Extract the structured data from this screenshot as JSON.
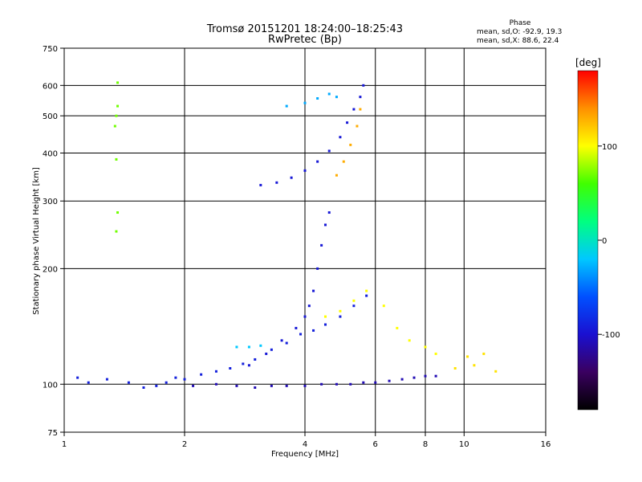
{
  "chart_data": {
    "type": "scatter",
    "title": "Tromsø 20151201 18:24:00–18:25:43",
    "subtitle": "RwPretec (Bp)",
    "xlabel": "Frequency [MHz]",
    "ylabel": "Stationary phase Virtual Height [km]",
    "x_scale": "log",
    "y_scale": "log",
    "xlim": [
      1,
      16
    ],
    "ylim": [
      75,
      750
    ],
    "x_ticks": [
      1,
      2,
      4,
      6,
      8,
      10,
      16
    ],
    "y_ticks": [
      75,
      100,
      200,
      300,
      400,
      500,
      600,
      750
    ],
    "grid": true,
    "phase_box": {
      "title": "Phase",
      "line_o": "mean, sd,O: -92.9, 19.3",
      "line_x": "mean, sd,X: 88.6, 22.4"
    },
    "colorbar": {
      "label": "[deg]",
      "range": [
        -180,
        180
      ],
      "ticks": [
        -100,
        0,
        100
      ],
      "colors": [
        "#000000",
        "#3a0060",
        "#1a10d0",
        "#0050ff",
        "#00c8ff",
        "#00ff80",
        "#40ff00",
        "#ffff00",
        "#ff9000",
        "#ff0000"
      ]
    },
    "series": [
      {
        "values": [
          [
            1.08,
            104
          ],
          [
            1.15,
            101
          ],
          [
            1.28,
            103
          ],
          [
            1.45,
            101
          ],
          [
            1.58,
            98
          ],
          [
            1.7,
            99
          ],
          [
            1.8,
            101
          ],
          [
            1.9,
            104
          ],
          [
            2.0,
            103
          ],
          [
            2.2,
            106
          ],
          [
            2.4,
            108
          ],
          [
            2.6,
            110
          ],
          [
            2.8,
            113
          ],
          [
            3.0,
            116
          ],
          [
            3.3,
            123
          ],
          [
            3.6,
            128
          ],
          [
            3.9,
            135
          ],
          [
            4.2,
            138
          ],
          [
            4.5,
            143
          ],
          [
            4.9,
            150
          ],
          [
            5.3,
            160
          ],
          [
            5.7,
            170
          ]
        ],
        "phase": -90
      },
      {
        "values": [
          [
            2.1,
            99
          ],
          [
            2.4,
            100
          ],
          [
            2.7,
            99
          ],
          [
            3.0,
            98
          ],
          [
            3.3,
            99
          ],
          [
            3.6,
            99
          ],
          [
            4.0,
            99
          ],
          [
            4.4,
            100
          ],
          [
            4.8,
            100
          ],
          [
            5.2,
            100
          ],
          [
            5.6,
            101
          ],
          [
            6.0,
            101
          ],
          [
            6.5,
            102
          ],
          [
            7.0,
            103
          ],
          [
            7.5,
            104
          ],
          [
            8.0,
            105
          ],
          [
            8.5,
            105
          ]
        ],
        "phase": -110
      },
      {
        "values": [
          [
            2.9,
            112
          ],
          [
            3.2,
            120
          ],
          [
            3.5,
            130
          ],
          [
            3.8,
            140
          ],
          [
            4.0,
            150
          ],
          [
            4.1,
            160
          ],
          [
            4.2,
            175
          ],
          [
            4.3,
            200
          ],
          [
            4.4,
            230
          ],
          [
            4.5,
            260
          ],
          [
            4.6,
            280
          ]
        ],
        "phase": -95
      },
      {
        "values": [
          [
            3.1,
            330
          ],
          [
            3.4,
            335
          ],
          [
            3.7,
            345
          ],
          [
            4.0,
            360
          ],
          [
            4.3,
            380
          ],
          [
            4.6,
            405
          ],
          [
            4.9,
            440
          ],
          [
            5.1,
            480
          ],
          [
            5.3,
            520
          ],
          [
            5.5,
            560
          ],
          [
            5.6,
            600
          ]
        ],
        "phase": -95
      },
      {
        "values": [
          [
            3.6,
            530
          ],
          [
            4.0,
            540
          ],
          [
            4.3,
            555
          ],
          [
            4.6,
            570
          ],
          [
            4.8,
            560
          ]
        ],
        "phase": -30
      },
      {
        "values": [
          [
            4.5,
            150
          ],
          [
            4.9,
            155
          ],
          [
            5.3,
            165
          ],
          [
            5.7,
            175
          ],
          [
            6.3,
            160
          ],
          [
            6.8,
            140
          ],
          [
            7.3,
            130
          ],
          [
            8.0,
            125
          ],
          [
            8.5,
            120
          ]
        ],
        "phase": 100
      },
      {
        "values": [
          [
            4.8,
            350
          ],
          [
            5.0,
            380
          ],
          [
            5.2,
            420
          ],
          [
            5.4,
            470
          ],
          [
            5.5,
            520
          ]
        ],
        "phase": 130
      },
      {
        "values": [
          [
            2.7,
            125
          ],
          [
            2.9,
            125
          ],
          [
            3.1,
            126
          ]
        ],
        "phase": -20
      },
      {
        "values": [
          [
            1.34,
            470
          ],
          [
            1.35,
            500
          ],
          [
            1.36,
            530
          ],
          [
            1.35,
            385
          ],
          [
            1.36,
            280
          ],
          [
            1.35,
            250
          ],
          [
            1.36,
            610
          ]
        ],
        "phase": 70
      },
      {
        "values": [
          [
            9.5,
            110
          ],
          [
            10.2,
            118
          ],
          [
            10.6,
            112
          ],
          [
            11.2,
            120
          ],
          [
            12.0,
            108
          ]
        ],
        "phase": 110
      }
    ]
  }
}
